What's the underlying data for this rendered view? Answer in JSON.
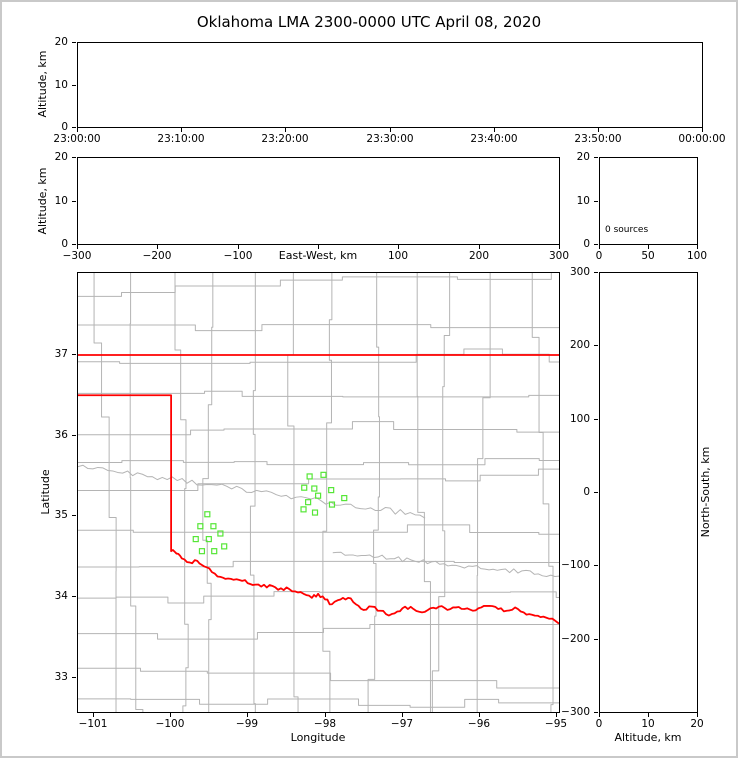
{
  "title": "Oklahoma LMA 2300-0000 UTC April 08, 2020",
  "colors": {
    "state_border": "#ff0000",
    "county_lines": "#b4b4b4",
    "station_marker": "#55e636",
    "axis": "#000000",
    "frame": "#c9c9c9"
  },
  "chart_data": [
    {
      "id": "time-height",
      "type": "scatter",
      "ylabel": "Altitude, km",
      "ylim": [
        0,
        20
      ],
      "yticks": [
        0,
        10,
        20
      ],
      "xtick_labels": [
        "23:00:00",
        "23:10:00",
        "23:20:00",
        "23:30:00",
        "23:40:00",
        "23:50:00",
        "00:00:00"
      ],
      "points": []
    },
    {
      "id": "east-west-height",
      "type": "scatter",
      "xlabel": "East-West, km",
      "ylabel": "Altitude, km",
      "xlim": [
        -300,
        300
      ],
      "xticks": [
        -300,
        -200,
        -100,
        100,
        200,
        300
      ],
      "ylim": [
        0,
        20
      ],
      "yticks": [
        0,
        10,
        20
      ],
      "points": []
    },
    {
      "id": "altitude-source-histogram",
      "type": "bar",
      "annotation": "0 sources",
      "xlim": [
        0,
        100
      ],
      "xticks": [
        0,
        50,
        100
      ],
      "ylim": [
        0,
        20
      ],
      "yticks": [
        0,
        10,
        20
      ],
      "values": []
    },
    {
      "id": "plan-view-map",
      "type": "scatter",
      "xlabel": "Longitude",
      "ylabel": "Latitude",
      "xlim": [
        -101.21,
        -94.96
      ],
      "xticks": [
        -101,
        -100,
        -99,
        -98,
        -97,
        -96,
        -95
      ],
      "ylim": [
        32.56,
        38.02
      ],
      "yticks": [
        33,
        34,
        35,
        36,
        37
      ],
      "stations": [
        [
          -99.53,
          35.02
        ],
        [
          -99.62,
          34.87
        ],
        [
          -99.45,
          34.87
        ],
        [
          -99.68,
          34.71
        ],
        [
          -99.51,
          34.71
        ],
        [
          -99.36,
          34.78
        ],
        [
          -99.6,
          34.56
        ],
        [
          -99.44,
          34.56
        ],
        [
          -99.31,
          34.62
        ],
        [
          -98.2,
          35.49
        ],
        [
          -98.02,
          35.51
        ],
        [
          -98.27,
          35.35
        ],
        [
          -98.14,
          35.34
        ],
        [
          -97.92,
          35.32
        ],
        [
          -98.09,
          35.25
        ],
        [
          -98.22,
          35.17
        ],
        [
          -98.28,
          35.08
        ],
        [
          -98.13,
          35.04
        ],
        [
          -97.91,
          35.14
        ],
        [
          -97.75,
          35.22
        ]
      ],
      "state_border": {
        "kansas_line": [
          [
            -101.21,
            37.0
          ],
          [
            -94.96,
            37.0
          ]
        ],
        "panhandle_west": [
          [
            -101.21,
            36.5
          ],
          [
            -100.0,
            36.5
          ],
          [
            -100.0,
            34.56
          ]
        ],
        "red_river": [
          [
            -100.0,
            34.56
          ],
          [
            -99.93,
            34.53
          ],
          [
            -99.86,
            34.47
          ],
          [
            -99.76,
            34.42
          ],
          [
            -99.66,
            34.44
          ],
          [
            -99.57,
            34.37
          ],
          [
            -99.47,
            34.3
          ],
          [
            -99.36,
            34.24
          ],
          [
            -99.26,
            34.22
          ],
          [
            -99.15,
            34.21
          ],
          [
            -99.04,
            34.2
          ],
          [
            -98.94,
            34.14
          ],
          [
            -98.83,
            34.12
          ],
          [
            -98.72,
            34.14
          ],
          [
            -98.61,
            34.08
          ],
          [
            -98.5,
            34.11
          ],
          [
            -98.39,
            34.06
          ],
          [
            -98.28,
            34.03
          ],
          [
            -98.17,
            33.98
          ],
          [
            -98.09,
            34.03
          ],
          [
            -98.0,
            33.96
          ],
          [
            -97.91,
            33.9
          ],
          [
            -97.8,
            33.96
          ],
          [
            -97.7,
            33.98
          ],
          [
            -97.6,
            33.9
          ],
          [
            -97.5,
            33.83
          ],
          [
            -97.39,
            33.87
          ],
          [
            -97.28,
            33.82
          ],
          [
            -97.17,
            33.76
          ],
          [
            -97.06,
            33.81
          ],
          [
            -96.96,
            33.87
          ],
          [
            -96.85,
            33.84
          ],
          [
            -96.74,
            33.8
          ],
          [
            -96.63,
            33.85
          ],
          [
            -96.52,
            33.87
          ],
          [
            -96.41,
            33.83
          ],
          [
            -96.3,
            33.86
          ],
          [
            -96.19,
            33.84
          ],
          [
            -96.08,
            33.82
          ],
          [
            -95.97,
            33.86
          ],
          [
            -95.86,
            33.88
          ],
          [
            -95.75,
            33.84
          ],
          [
            -95.64,
            33.82
          ],
          [
            -95.53,
            33.86
          ],
          [
            -95.42,
            33.8
          ],
          [
            -95.31,
            33.77
          ],
          [
            -95.2,
            33.74
          ],
          [
            -95.09,
            33.72
          ],
          [
            -94.96,
            33.66
          ]
        ]
      }
    },
    {
      "id": "north-south-height",
      "type": "scatter",
      "xlabel": "Altitude, km",
      "ylabel_right": "North-South, km",
      "xlim": [
        0,
        20
      ],
      "xticks": [
        0,
        10,
        20
      ],
      "ylim": [
        -300,
        300
      ],
      "yticks": [
        300,
        200,
        100,
        0,
        -100,
        -200,
        -300
      ],
      "points": []
    }
  ]
}
